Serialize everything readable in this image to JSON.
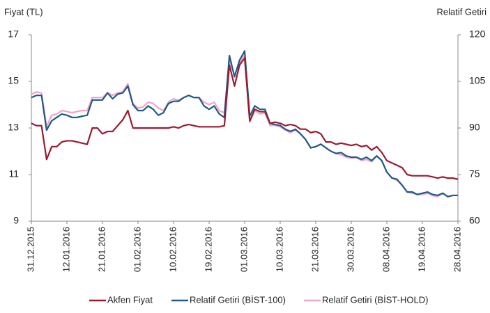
{
  "chart_data": {
    "type": "line",
    "ylabel": "Fiyat  (TL)",
    "y2label": "Relatif Getiri",
    "categories": [
      "31.12.2015",
      null,
      null,
      null,
      null,
      null,
      null,
      "12.01.2016",
      null,
      null,
      null,
      null,
      null,
      null,
      "21.01.2016",
      null,
      null,
      null,
      null,
      null,
      null,
      "01.02.2016",
      null,
      null,
      null,
      null,
      null,
      null,
      "10.02.2016",
      null,
      null,
      null,
      null,
      null,
      null,
      "19.02.2016",
      null,
      null,
      null,
      null,
      null,
      null,
      "01.03.2016",
      null,
      null,
      null,
      null,
      null,
      null,
      "10.03.2016",
      null,
      null,
      null,
      null,
      null,
      null,
      "21.03.2016",
      null,
      null,
      null,
      null,
      null,
      null,
      "30.03.2016",
      null,
      null,
      null,
      null,
      null,
      null,
      "08.04.2016",
      null,
      null,
      null,
      null,
      null,
      null,
      "19.04.2016",
      null,
      null,
      null,
      null,
      null,
      null,
      "28.04.2016"
    ],
    "ylim": [
      9,
      17
    ],
    "yticks": [
      9,
      11,
      13,
      15,
      17
    ],
    "y2lim": [
      60,
      120
    ],
    "y2ticks": [
      60,
      75,
      90,
      105,
      120
    ],
    "legend": "bottom",
    "series": [
      {
        "name": "Relatif Getiri (BİST-HOLD)",
        "color": "#f2a5c6",
        "axis": "y2",
        "values": [
          100.9,
          101.6,
          101.3,
          90.4,
          94.1,
          94.5,
          95.6,
          95.3,
          94.9,
          95.3,
          95.6,
          95.6,
          99.8,
          99.8,
          99.8,
          101.3,
          100.5,
          101.3,
          101.6,
          104.3,
          97.9,
          96.4,
          96.8,
          98.3,
          97.9,
          96.4,
          95.6,
          98.3,
          99.4,
          99.0,
          99.8,
          100.5,
          99.8,
          99.8,
          98.3,
          97.5,
          98.3,
          95.6,
          94.9,
          112.1,
          106.9,
          111.0,
          113.6,
          91.9,
          95.6,
          94.5,
          94.9,
          90.8,
          90.8,
          90.4,
          89.3,
          88.5,
          89.3,
          88.1,
          86.3,
          83.6,
          84.0,
          84.8,
          83.6,
          82.5,
          81.8,
          81.4,
          80.6,
          80.3,
          80.6,
          79.5,
          79.9,
          79.1,
          81.0,
          79.5,
          75.8,
          73.9,
          73.1,
          71.6,
          69.4,
          69.0,
          68.6,
          68.6,
          69.0,
          68.3,
          67.9,
          69.0,
          67.9,
          68.3,
          68.3
        ]
      },
      {
        "name": "Relatif Getiri (BİST-100)",
        "color": "#1d5a88",
        "axis": "y2",
        "values": [
          99.8,
          100.5,
          100.5,
          89.3,
          92.3,
          93.4,
          94.5,
          94.1,
          93.4,
          93.4,
          93.8,
          94.1,
          99.0,
          99.0,
          99.0,
          101.3,
          99.4,
          100.9,
          101.3,
          103.5,
          97.5,
          95.6,
          95.6,
          97.1,
          96.0,
          94.1,
          94.9,
          97.9,
          98.6,
          98.6,
          99.8,
          100.5,
          99.8,
          99.8,
          97.1,
          96.0,
          97.1,
          94.5,
          93.4,
          113.3,
          106.5,
          111.8,
          114.8,
          93.8,
          97.1,
          96.0,
          96.0,
          91.5,
          91.1,
          90.8,
          89.6,
          88.9,
          89.6,
          88.1,
          86.3,
          83.6,
          84.0,
          84.8,
          83.6,
          82.5,
          81.8,
          82.1,
          81.0,
          80.6,
          80.6,
          79.9,
          80.6,
          79.5,
          81.0,
          79.5,
          75.8,
          73.9,
          73.5,
          71.6,
          69.4,
          69.4,
          68.6,
          69.0,
          69.4,
          68.6,
          68.3,
          69.0,
          67.9,
          68.3,
          68.3
        ]
      },
      {
        "name": "Akfen Fiyat",
        "color": "#9b1a2f",
        "axis": "y",
        "values": [
          13.2,
          13.1,
          13.1,
          11.65,
          12.2,
          12.2,
          12.4,
          12.45,
          12.45,
          12.4,
          12.35,
          12.3,
          13.0,
          13.0,
          12.75,
          12.85,
          12.85,
          13.1,
          13.35,
          13.75,
          13.0,
          13.0,
          13.0,
          13.0,
          13.0,
          13.0,
          13.0,
          13.0,
          13.05,
          13.0,
          13.1,
          13.15,
          13.1,
          13.05,
          13.05,
          13.05,
          13.05,
          13.05,
          13.1,
          15.7,
          14.8,
          15.7,
          16.0,
          13.3,
          13.8,
          13.7,
          13.7,
          13.2,
          13.25,
          13.2,
          13.1,
          13.15,
          13.1,
          12.95,
          12.95,
          12.8,
          12.85,
          12.75,
          12.4,
          12.4,
          12.3,
          12.35,
          12.3,
          12.25,
          12.3,
          12.2,
          12.25,
          12.05,
          12.2,
          11.95,
          11.6,
          11.5,
          11.4,
          11.3,
          11.0,
          10.95,
          10.95,
          10.95,
          10.95,
          10.9,
          10.85,
          10.9,
          10.85,
          10.85,
          10.8
        ]
      }
    ]
  }
}
